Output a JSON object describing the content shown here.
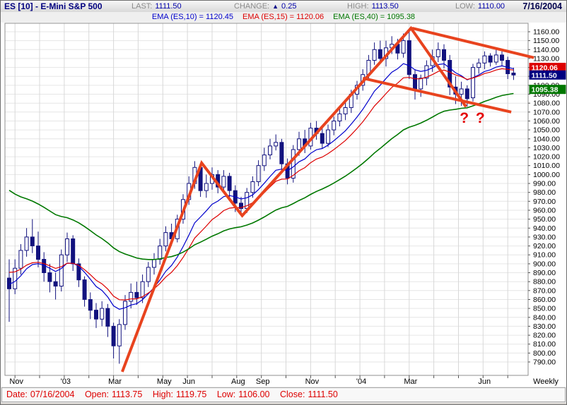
{
  "window_title": "ES [10] - E-Mini S&P 500",
  "window_date": "7/16/2004",
  "quote_bar": {
    "last_label": "LAST:",
    "last_value": "1111.50",
    "change_label": "CHANGE:",
    "change_arrow": "▲",
    "change_value": "0.25",
    "high_label": "HIGH:",
    "high_value": "1113.50",
    "low_label": "LOW:",
    "low_value": "1110.00"
  },
  "indicator_bar": {
    "items": [
      {
        "label": "EMA (ES,10) = 1120.45",
        "color": "#0000cc"
      },
      {
        "label": "EMA (ES,15) = 1120.06",
        "color": "#dd0000"
      },
      {
        "label": "EMA (ES,40) = 1095.38",
        "color": "#007700"
      }
    ]
  },
  "status_bar": {
    "items": [
      {
        "label": "Date:",
        "value": "07/16/2004"
      },
      {
        "label": "Open:",
        "value": "1113.75"
      },
      {
        "label": "High:",
        "value": "1119.75"
      },
      {
        "label": "Low:",
        "value": "1106.00"
      },
      {
        "label": "Close:",
        "value": "1111.50"
      }
    ]
  },
  "chart_data": {
    "type": "candlestick",
    "symbol": "ES",
    "timeframe_label": "Weekly",
    "ylim": [
      785,
      1169
    ],
    "y_ticks": {
      "start": 790,
      "end": 1160,
      "step": 10
    },
    "x_axis": {
      "first_week": 1,
      "weeks_per_month": 4.25,
      "month_count": 21,
      "labels": [
        {
          "k": 0,
          "text": "Nov"
        },
        {
          "k": 2,
          "text": "'03"
        },
        {
          "k": 4,
          "text": "Mar"
        },
        {
          "k": 6,
          "text": "May"
        },
        {
          "k": 7,
          "text": "Jun"
        },
        {
          "k": 9,
          "text": "Aug"
        },
        {
          "k": 10,
          "text": "Sep"
        },
        {
          "k": 12,
          "text": "Nov"
        },
        {
          "k": 14,
          "text": "'04"
        },
        {
          "k": 16,
          "text": "Mar"
        },
        {
          "k": 19,
          "text": "Jun"
        }
      ]
    },
    "candles": [
      [
        884,
        905,
        835,
        872
      ],
      [
        872,
        905,
        866,
        895
      ],
      [
        895,
        922,
        888,
        915
      ],
      [
        915,
        940,
        908,
        930
      ],
      [
        930,
        950,
        912,
        920
      ],
      [
        920,
        936,
        896,
        905
      ],
      [
        905,
        913,
        880,
        890
      ],
      [
        890,
        900,
        868,
        880
      ],
      [
        880,
        890,
        860,
        875
      ],
      [
        875,
        916,
        869,
        910
      ],
      [
        910,
        935,
        902,
        928
      ],
      [
        928,
        932,
        892,
        900
      ],
      [
        900,
        906,
        874,
        882
      ],
      [
        882,
        886,
        852,
        860
      ],
      [
        860,
        868,
        838,
        848
      ],
      [
        848,
        856,
        828,
        838
      ],
      [
        838,
        858,
        830,
        850
      ],
      [
        850,
        855,
        818,
        830
      ],
      [
        830,
        834,
        794,
        808
      ],
      [
        808,
        838,
        788,
        832
      ],
      [
        832,
        865,
        826,
        858
      ],
      [
        858,
        878,
        850,
        868
      ],
      [
        868,
        880,
        854,
        862
      ],
      [
        862,
        888,
        856,
        880
      ],
      [
        880,
        902,
        874,
        896
      ],
      [
        896,
        912,
        888,
        905
      ],
      [
        905,
        928,
        899,
        920
      ],
      [
        920,
        942,
        914,
        935
      ],
      [
        935,
        945,
        920,
        928
      ],
      [
        928,
        955,
        924,
        950
      ],
      [
        950,
        978,
        945,
        972
      ],
      [
        972,
        998,
        966,
        990
      ],
      [
        990,
        1015,
        984,
        1008
      ],
      [
        1008,
        1013,
        975,
        982
      ],
      [
        982,
        1000,
        974,
        990
      ],
      [
        990,
        1008,
        983,
        1000
      ],
      [
        1000,
        1005,
        979,
        986
      ],
      [
        986,
        1005,
        980,
        998
      ],
      [
        998,
        1002,
        974,
        982
      ],
      [
        982,
        988,
        958,
        968
      ],
      [
        968,
        975,
        954,
        962
      ],
      [
        962,
        985,
        957,
        980
      ],
      [
        980,
        998,
        974,
        992
      ],
      [
        992,
        1016,
        987,
        1010
      ],
      [
        1010,
        1030,
        1004,
        1022
      ],
      [
        1022,
        1040,
        1017,
        1032
      ],
      [
        1032,
        1045,
        1027,
        1036
      ],
      [
        1036,
        1040,
        1004,
        1012
      ],
      [
        1012,
        1018,
        989,
        996
      ],
      [
        996,
        1033,
        991,
        1028
      ],
      [
        1028,
        1048,
        1021,
        1040
      ],
      [
        1040,
        1050,
        1024,
        1032
      ],
      [
        1032,
        1058,
        1028,
        1052
      ],
      [
        1052,
        1060,
        1039,
        1046
      ],
      [
        1046,
        1052,
        1029,
        1035
      ],
      [
        1035,
        1056,
        1031,
        1050
      ],
      [
        1050,
        1065,
        1044,
        1060
      ],
      [
        1060,
        1074,
        1054,
        1068
      ],
      [
        1068,
        1082,
        1061,
        1075
      ],
      [
        1075,
        1095,
        1069,
        1090
      ],
      [
        1090,
        1105,
        1084,
        1100
      ],
      [
        1100,
        1118,
        1094,
        1112
      ],
      [
        1112,
        1134,
        1107,
        1128
      ],
      [
        1128,
        1148,
        1123,
        1140
      ],
      [
        1140,
        1150,
        1125,
        1130
      ],
      [
        1130,
        1150,
        1121,
        1142
      ],
      [
        1142,
        1155,
        1135,
        1146
      ],
      [
        1146,
        1152,
        1129,
        1136
      ],
      [
        1136,
        1158,
        1131,
        1150
      ],
      [
        1150,
        1163,
        1107,
        1112
      ],
      [
        1112,
        1118,
        1084,
        1096
      ],
      [
        1096,
        1112,
        1087,
        1108
      ],
      [
        1108,
        1128,
        1100,
        1122
      ],
      [
        1122,
        1140,
        1115,
        1132
      ],
      [
        1132,
        1148,
        1126,
        1140
      ],
      [
        1140,
        1146,
        1119,
        1128
      ],
      [
        1128,
        1134,
        1089,
        1098
      ],
      [
        1098,
        1110,
        1079,
        1090
      ],
      [
        1090,
        1104,
        1077,
        1096
      ],
      [
        1096,
        1100,
        1076,
        1085
      ],
      [
        1086,
        1124,
        1082,
        1120
      ],
      [
        1120,
        1130,
        1113,
        1125
      ],
      [
        1125,
        1138,
        1118,
        1133
      ],
      [
        1133,
        1136,
        1121,
        1126
      ],
      [
        1126,
        1140,
        1123,
        1134
      ],
      [
        1134,
        1138,
        1121,
        1128
      ],
      [
        1128,
        1132,
        1107,
        1113
      ],
      [
        1113.75,
        1119.75,
        1106,
        1111.5
      ]
    ],
    "overlays": [
      {
        "name": "EMA (ES,10)",
        "period": 10,
        "seed": 878,
        "color": "#0000cc",
        "width": 1.2
      },
      {
        "name": "EMA (ES,15)",
        "period": 15,
        "seed": 893,
        "color": "#dd0000",
        "width": 1.2
      },
      {
        "name": "EMA (ES,40)",
        "period": 40,
        "seed": 988,
        "color": "#007800",
        "width": 1.6
      }
    ],
    "badges": [
      {
        "text": "1120.06",
        "price": 1120.06,
        "color": "#dd0000"
      },
      {
        "text": "1111.50",
        "price": 1111.5,
        "color": "#000080"
      },
      {
        "text": "1095.38",
        "price": 1095.38,
        "color": "#007700"
      }
    ],
    "annotations": {
      "color": "#e8431e",
      "zigzag": [
        [
          19.5,
          779
        ],
        [
          33.2,
          1013
        ],
        [
          40.2,
          954
        ],
        [
          69.3,
          1164
        ],
        [
          78.8,
          1076
        ]
      ],
      "channel": [
        [
          [
            69.5,
            1164
          ],
          [
            90.5,
            1131
          ]
        ],
        [
          [
            61,
            1108
          ],
          [
            86.6,
            1070
          ]
        ]
      ],
      "question_text": "? ?",
      "question_pos": [
        80,
        1058
      ],
      "question_color": "#e40000"
    },
    "weekly_label": "Weekly"
  }
}
